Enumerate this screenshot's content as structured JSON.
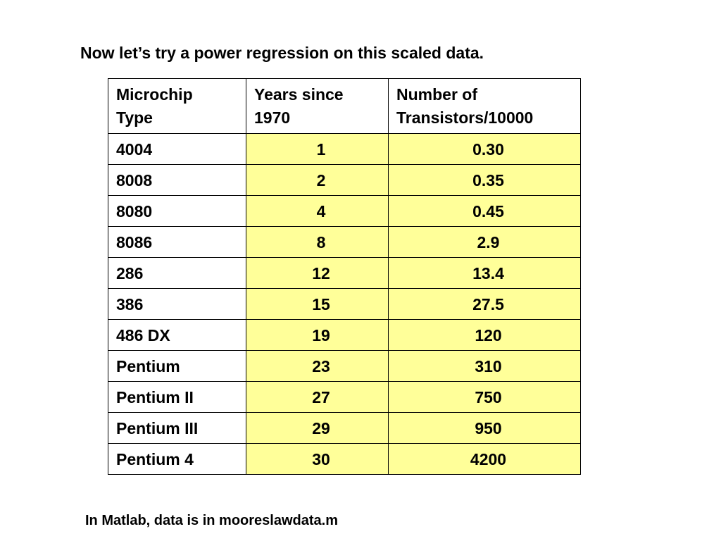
{
  "title": "Now let’s try a power regression on this scaled data.",
  "table": {
    "headers": [
      [
        "Microchip",
        "Type"
      ],
      [
        "Years since",
        "1970"
      ],
      [
        "Number of",
        "Transistors/10000"
      ]
    ],
    "rows": [
      {
        "chip": "4004",
        "years": "1",
        "transistors": "0.30"
      },
      {
        "chip": "8008",
        "years": "2",
        "transistors": "0.35"
      },
      {
        "chip": "8080",
        "years": "4",
        "transistors": "0.45"
      },
      {
        "chip": "8086",
        "years": "8",
        "transistors": "2.9"
      },
      {
        "chip": "286",
        "years": "12",
        "transistors": "13.4"
      },
      {
        "chip": "386",
        "years": "15",
        "transistors": "27.5"
      },
      {
        "chip": "486 DX",
        "years": "19",
        "transistors": "120"
      },
      {
        "chip": "Pentium",
        "years": "23",
        "transistors": "310"
      },
      {
        "chip": "Pentium II",
        "years": "27",
        "transistors": "750"
      },
      {
        "chip": "Pentium III",
        "years": "29",
        "transistors": "950"
      },
      {
        "chip": "Pentium 4",
        "years": "30",
        "transistors": "4200"
      }
    ]
  },
  "footer": "In Matlab, data is in mooreslawdata.m",
  "colors": {
    "value_cell_background": "#ffff99",
    "text": "#000000",
    "border": "#000000"
  }
}
